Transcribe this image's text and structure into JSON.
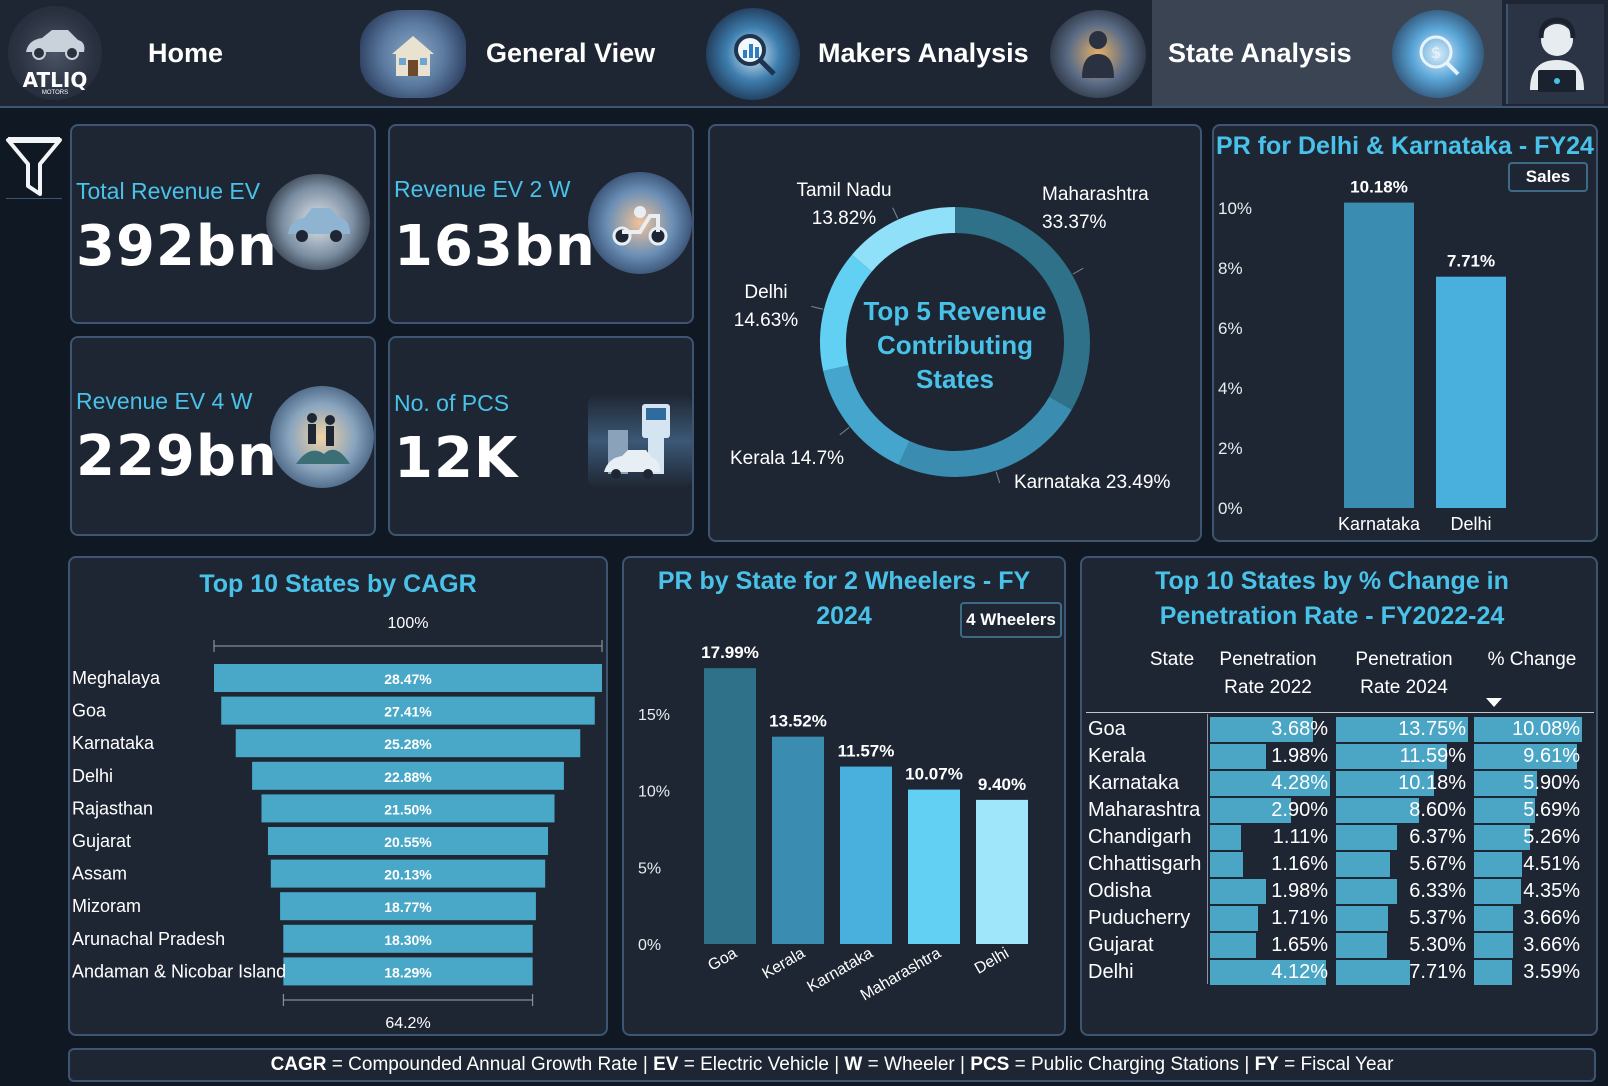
{
  "nav": {
    "tabs": [
      {
        "label": "Home"
      },
      {
        "label": "General View"
      },
      {
        "label": "Makers Analysis"
      },
      {
        "label": "State Analysis"
      }
    ],
    "logo_text": "ATLIQ",
    "logo_sub": "MOTORS"
  },
  "colors": {
    "accent": "#49c2ea",
    "panel": "#1f2633",
    "border": "#3d5570",
    "bg": "#101823",
    "bar_mid": "#49a8c8",
    "bar_dark": "#2e7189"
  },
  "kpis": [
    {
      "label": "Total Revenue EV",
      "value": "392bn"
    },
    {
      "label": "Revenue EV 2 W",
      "value": "163bn"
    },
    {
      "label": "Revenue EV 4 W",
      "value": "229bn"
    },
    {
      "label": "No. of PCS",
      "value": "12K"
    }
  ],
  "chart_data": [
    {
      "type": "pie",
      "title": "Top 5 Revenue Contributing States",
      "categories": [
        "Maharashtra",
        "Karnataka",
        "Kerala",
        "Delhi",
        "Tamil Nadu"
      ],
      "values": [
        33.37,
        23.49,
        14.7,
        14.63,
        13.82
      ],
      "labels": [
        "Maharashtra 33.37%",
        "Karnataka 23.49%",
        "Kerala 14.7%",
        "Delhi 14.63%",
        "Tamil Nadu 13.82%"
      ],
      "colors": [
        "#2e7189",
        "#3a8db0",
        "#45a5cc",
        "#62d0f2",
        "#8fe0f8"
      ]
    },
    {
      "type": "bar",
      "title": "PR for Delhi & Karnataka - FY24",
      "button": "Sales",
      "categories": [
        "Karnataka",
        "Delhi"
      ],
      "values": [
        10.18,
        7.71
      ],
      "data_labels": [
        "10.18%",
        "7.71%"
      ],
      "ylim": [
        0,
        10
      ],
      "yticks": [
        "0%",
        "2%",
        "4%",
        "6%",
        "8%",
        "10%"
      ],
      "colors": [
        "#3a8db0",
        "#49b0dd"
      ]
    },
    {
      "type": "bar",
      "title": "Top 10 States by CAGR",
      "orientation": "horizontal-funnel",
      "top_label": "100%",
      "bottom_label": "64.2%",
      "categories": [
        "Meghalaya",
        "Goa",
        "Karnataka",
        "Delhi",
        "Rajasthan",
        "Gujarat",
        "Assam",
        "Mizoram",
        "Arunachal Pradesh",
        "Andaman & Nicobar Island"
      ],
      "values": [
        28.47,
        27.41,
        25.28,
        22.88,
        21.5,
        20.55,
        20.13,
        18.77,
        18.3,
        18.29
      ],
      "data_labels": [
        "28.47%",
        "27.41%",
        "25.28%",
        "22.88%",
        "21.50%",
        "20.55%",
        "20.13%",
        "18.77%",
        "18.30%",
        "18.29%"
      ]
    },
    {
      "type": "bar",
      "title": "PR by State for 2 Wheelers - FY 2024",
      "button": "4 Wheelers",
      "categories": [
        "Goa",
        "Kerala",
        "Karnataka",
        "Maharashtra",
        "Delhi"
      ],
      "values": [
        17.99,
        13.52,
        11.57,
        10.07,
        9.4
      ],
      "data_labels": [
        "17.99%",
        "13.52%",
        "11.57%",
        "10.07%",
        "9.40%"
      ],
      "ylim": [
        0,
        18
      ],
      "yticks": [
        "0%",
        "5%",
        "10%",
        "15%"
      ],
      "colors": [
        "#2e7189",
        "#3a8db0",
        "#49b0dd",
        "#62d0f2",
        "#a0e6fa"
      ]
    },
    {
      "type": "table",
      "title": "Top 10 States by % Change in Penetration Rate - FY2022-24",
      "columns": [
        "State",
        "Penetration Rate 2022",
        "Penetration Rate 2024",
        "% Change"
      ],
      "rows": [
        [
          "Goa",
          "3.68%",
          "13.75%",
          "10.08%"
        ],
        [
          "Kerala",
          "1.98%",
          "11.59%",
          "9.61%"
        ],
        [
          "Karnataka",
          "4.28%",
          "10.18%",
          "5.90%"
        ],
        [
          "Maharashtra",
          "2.90%",
          "8.60%",
          "5.69%"
        ],
        [
          "Chandigarh",
          "1.11%",
          "6.37%",
          "5.26%"
        ],
        [
          "Chhattisgarh",
          "1.16%",
          "5.67%",
          "4.51%"
        ],
        [
          "Odisha",
          "1.98%",
          "6.33%",
          "4.35%"
        ],
        [
          "Puducherry",
          "1.71%",
          "5.37%",
          "3.66%"
        ],
        [
          "Gujarat",
          "1.65%",
          "5.30%",
          "3.66%"
        ],
        [
          "Delhi",
          "4.12%",
          "7.71%",
          "3.59%"
        ]
      ],
      "pr2022": [
        3.68,
        1.98,
        4.28,
        2.9,
        1.11,
        1.16,
        1.98,
        1.71,
        1.65,
        4.12
      ],
      "pr2024": [
        13.75,
        11.59,
        10.18,
        8.6,
        6.37,
        5.67,
        6.33,
        5.37,
        5.3,
        7.71
      ],
      "change": [
        10.08,
        9.61,
        5.9,
        5.69,
        5.26,
        4.51,
        4.35,
        3.66,
        3.66,
        3.59
      ]
    }
  ],
  "footer": [
    {
      "bold": "CAGR",
      "text": " = Compounded Annual Growth Rate | "
    },
    {
      "bold": "EV",
      "text": " = Electric Vehicle | "
    },
    {
      "bold": "W",
      "text": " = Wheeler | "
    },
    {
      "bold": "PCS",
      "text": " = Public Charging Stations | "
    },
    {
      "bold": "FY",
      "text": " = Fiscal Year"
    }
  ]
}
